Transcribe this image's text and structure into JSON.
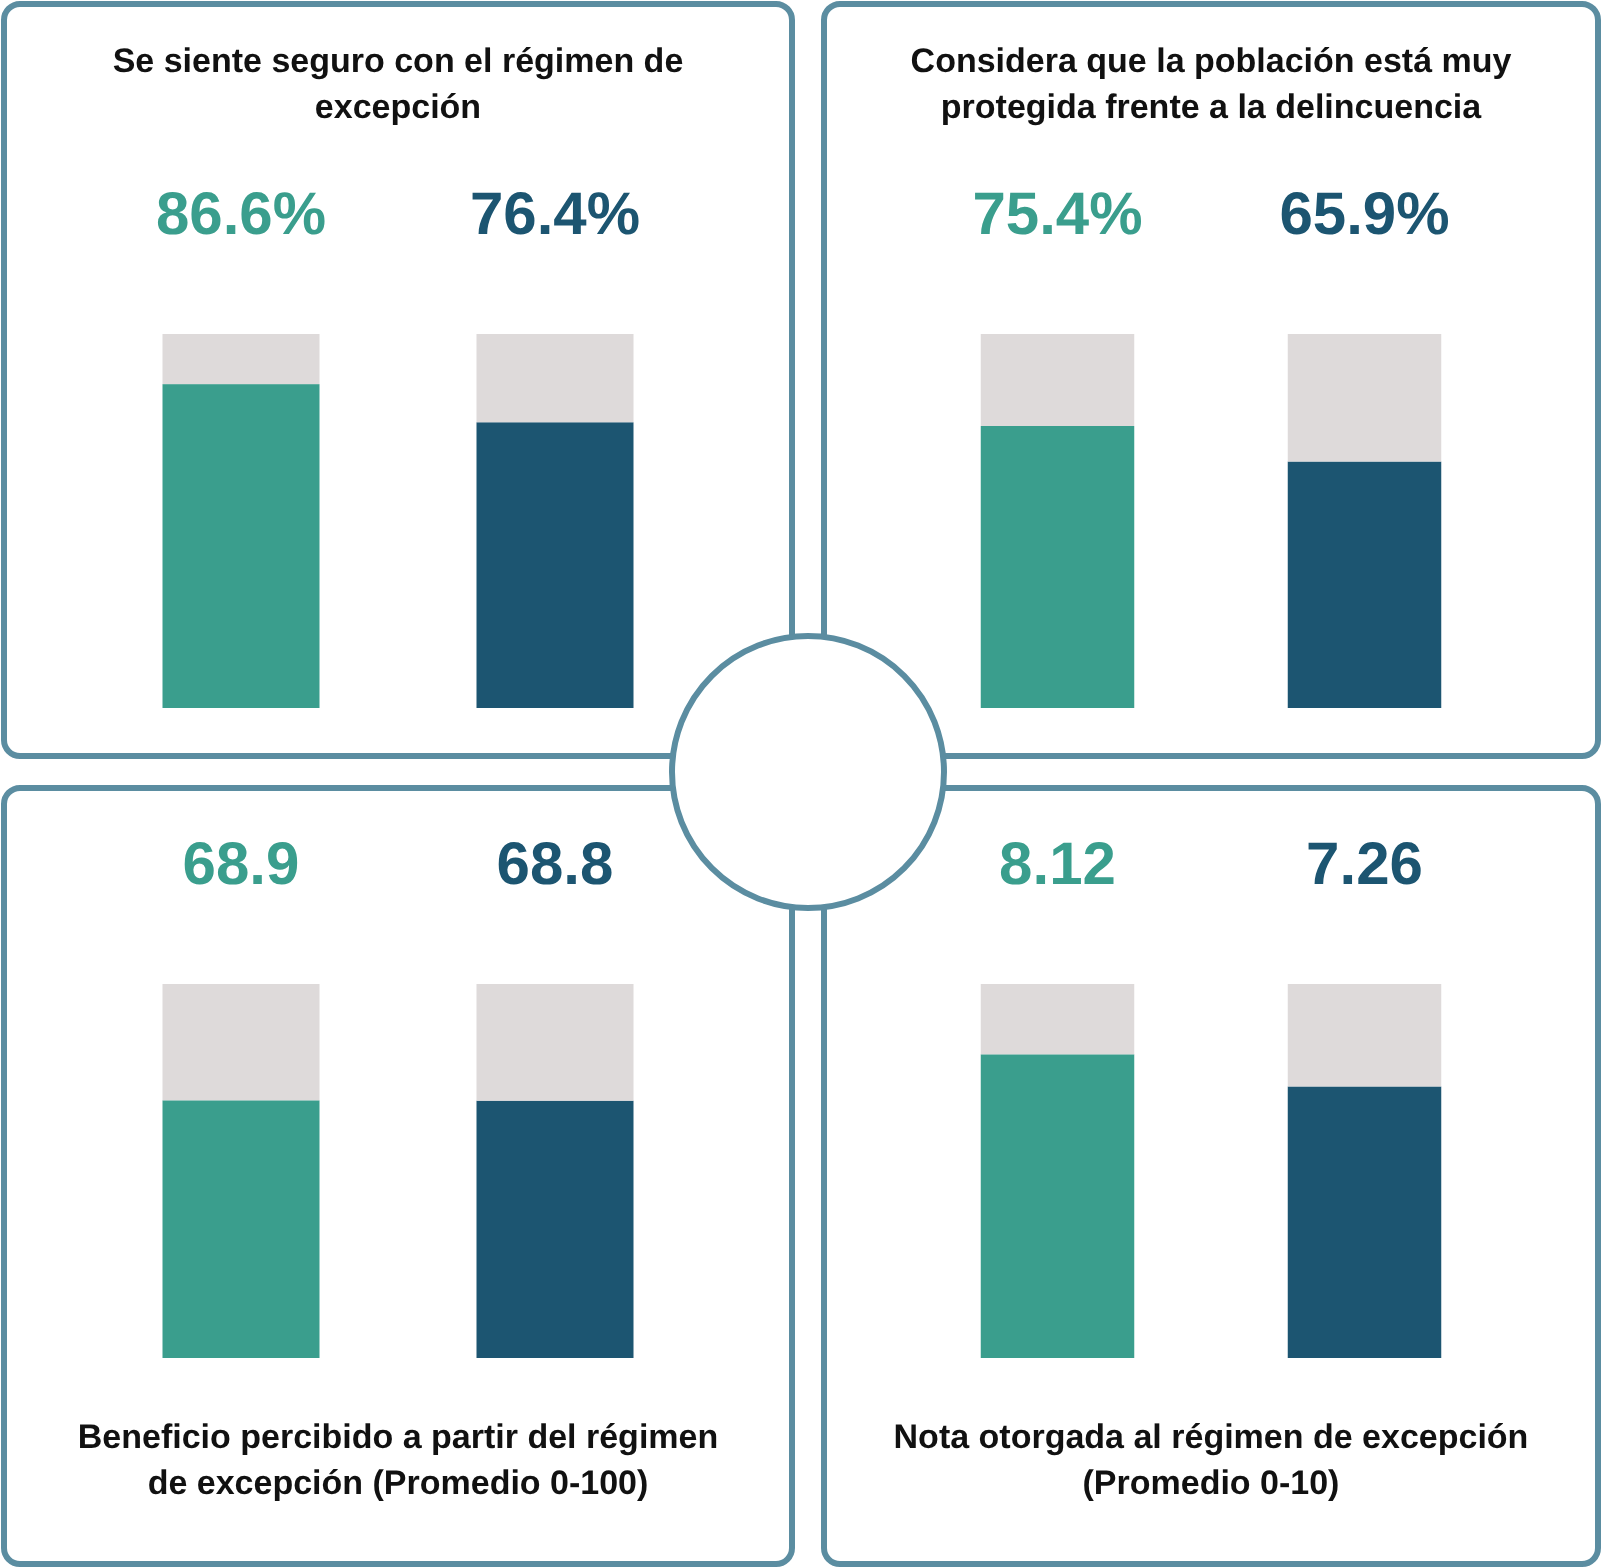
{
  "chart_data": [
    {
      "type": "bar",
      "title": "Se siente seguro con el régimen de excepción",
      "categories": [
        null,
        null
      ],
      "stacked": true,
      "ylim": [
        0,
        100
      ],
      "series": [
        {
          "colors": [
            "#3a9e8d",
            "#1c5571"
          ],
          "values": [
            86.6,
            76.4
          ],
          "value_labels": [
            "86.6%",
            "76.4%"
          ]
        },
        {
          "color": "#dedada",
          "values": [
            13.4,
            23.6
          ]
        }
      ]
    },
    {
      "type": "bar",
      "title": "Considera que la población está muy protegida frente a la delincuencia",
      "categories": [
        null,
        null
      ],
      "stacked": true,
      "ylim": [
        0,
        100
      ],
      "series": [
        {
          "colors": [
            "#3a9e8d",
            "#1c5571"
          ],
          "values": [
            75.4,
            65.9
          ],
          "value_labels": [
            "75.4%",
            "65.9%"
          ]
        },
        {
          "color": "#dedada",
          "values": [
            24.6,
            34.1
          ]
        }
      ]
    },
    {
      "type": "bar",
      "title": "Beneficio percibido a partir del régimen de excepción    (Promedio 0-100)",
      "categories": [
        null,
        null
      ],
      "stacked": true,
      "ylim": [
        0,
        100
      ],
      "series": [
        {
          "colors": [
            "#3a9e8d",
            "#1c5571"
          ],
          "values": [
            68.9,
            68.8
          ],
          "value_labels": [
            "68.9",
            "68.8"
          ]
        },
        {
          "color": "#dedada",
          "values": [
            31.1,
            31.2
          ]
        }
      ]
    },
    {
      "type": "bar",
      "title": "Nota otorgada al régimen de excepción (Promedio 0-10)",
      "categories": [
        null,
        null
      ],
      "stacked": true,
      "ylim": [
        0,
        10
      ],
      "series": [
        {
          "colors": [
            "#3a9e8d",
            "#1c5571"
          ],
          "values": [
            8.12,
            7.26
          ],
          "value_labels": [
            "8.12",
            "7.26"
          ]
        },
        {
          "color": "#dedada",
          "values": [
            1.88,
            2.74
          ]
        }
      ]
    }
  ]
}
